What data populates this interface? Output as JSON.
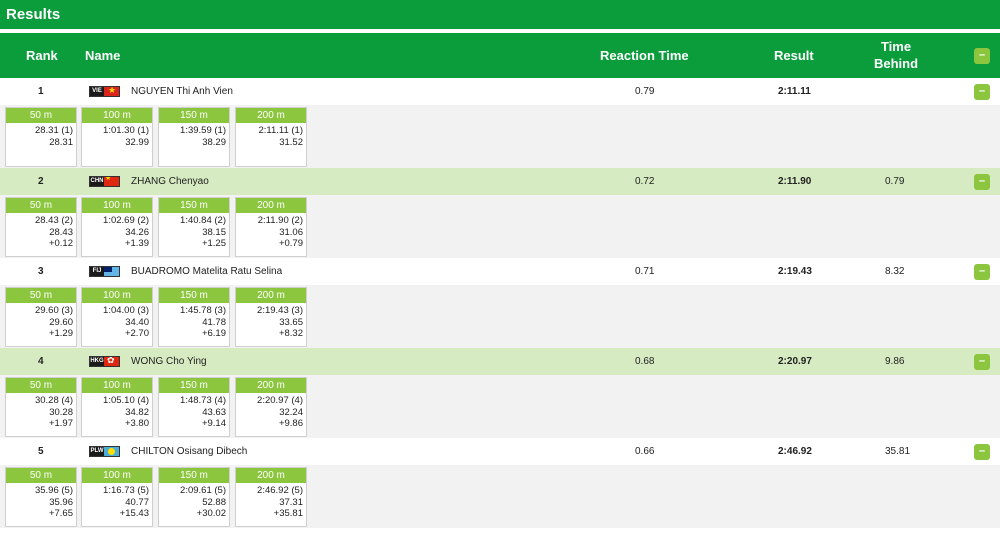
{
  "title": "Results",
  "columns": {
    "rank": "Rank",
    "name": "Name",
    "reaction_time": "Reaction Time",
    "result": "Result",
    "time_behind_line1": "Time",
    "time_behind_line2": "Behind",
    "collapse_icon": "–"
  },
  "split_labels": [
    "50 m",
    "100 m",
    "150 m",
    "200 m"
  ],
  "athletes": [
    {
      "rank": "1",
      "country_code": "VIE",
      "flag": "vietnam-flag-icon",
      "name": "NGUYEN Thi Anh Vien",
      "reaction_time": "0.79",
      "result": "2:11.11",
      "time_behind": "",
      "toggle": "–",
      "splits": [
        {
          "cum": "28.31 (1)",
          "lap": "28.31",
          "diff": ""
        },
        {
          "cum": "1:01.30 (1)",
          "lap": "32.99",
          "diff": ""
        },
        {
          "cum": "1:39.59 (1)",
          "lap": "38.29",
          "diff": ""
        },
        {
          "cum": "2:11.11 (1)",
          "lap": "31.52",
          "diff": ""
        }
      ]
    },
    {
      "rank": "2",
      "country_code": "CHN",
      "flag": "china-flag-icon",
      "name": "ZHANG Chenyao",
      "reaction_time": "0.72",
      "result": "2:11.90",
      "time_behind": "0.79",
      "toggle": "–",
      "splits": [
        {
          "cum": "28.43 (2)",
          "lap": "28.43",
          "diff": "+0.12"
        },
        {
          "cum": "1:02.69 (2)",
          "lap": "34.26",
          "diff": "+1.39"
        },
        {
          "cum": "1:40.84 (2)",
          "lap": "38.15",
          "diff": "+1.25"
        },
        {
          "cum": "2:11.90 (2)",
          "lap": "31.06",
          "diff": "+0.79"
        }
      ]
    },
    {
      "rank": "3",
      "country_code": "FIJ",
      "flag": "fiji-flag-icon",
      "name": "BUADROMO Matelita Ratu Selina",
      "reaction_time": "0.71",
      "result": "2:19.43",
      "time_behind": "8.32",
      "toggle": "–",
      "splits": [
        {
          "cum": "29.60 (3)",
          "lap": "29.60",
          "diff": "+1.29"
        },
        {
          "cum": "1:04.00 (3)",
          "lap": "34.40",
          "diff": "+2.70"
        },
        {
          "cum": "1:45.78 (3)",
          "lap": "41.78",
          "diff": "+6.19"
        },
        {
          "cum": "2:19.43 (3)",
          "lap": "33.65",
          "diff": "+8.32"
        }
      ]
    },
    {
      "rank": "4",
      "country_code": "HKG",
      "flag": "hong-kong-flag-icon",
      "name": "WONG Cho Ying",
      "reaction_time": "0.68",
      "result": "2:20.97",
      "time_behind": "9.86",
      "toggle": "–",
      "splits": [
        {
          "cum": "30.28 (4)",
          "lap": "30.28",
          "diff": "+1.97"
        },
        {
          "cum": "1:05.10 (4)",
          "lap": "34.82",
          "diff": "+3.80"
        },
        {
          "cum": "1:48.73 (4)",
          "lap": "43.63",
          "diff": "+9.14"
        },
        {
          "cum": "2:20.97 (4)",
          "lap": "32.24",
          "diff": "+9.86"
        }
      ]
    },
    {
      "rank": "5",
      "country_code": "PLW",
      "flag": "palau-flag-icon",
      "name": "CHILTON Osisang Dibech",
      "reaction_time": "0.66",
      "result": "2:46.92",
      "time_behind": "35.81",
      "toggle": "–",
      "splits": [
        {
          "cum": "35.96 (5)",
          "lap": "35.96",
          "diff": "+7.65"
        },
        {
          "cum": "1:16.73 (5)",
          "lap": "40.77",
          "diff": "+15.43"
        },
        {
          "cum": "2:09.61 (5)",
          "lap": "52.88",
          "diff": "+30.02"
        },
        {
          "cum": "2:46.92 (5)",
          "lap": "37.31",
          "diff": "+35.81"
        }
      ]
    }
  ]
}
